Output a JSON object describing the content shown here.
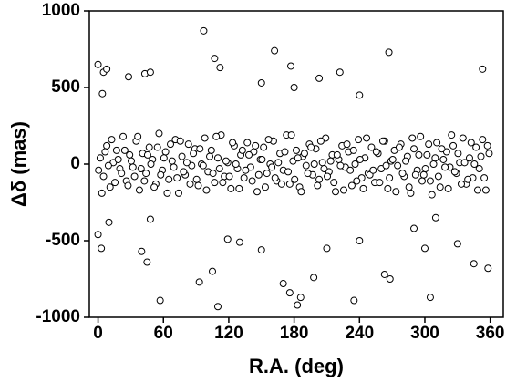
{
  "chart_data": {
    "type": "scatter",
    "xlabel": "R.A. (deg)",
    "ylabel": "Δδ (mas)",
    "xlim": [
      -8,
      372
    ],
    "ylim": [
      -1000,
      1000
    ],
    "xticks": [
      0,
      60,
      120,
      180,
      240,
      300,
      360
    ],
    "yticks": [
      -1000,
      -500,
      0,
      500,
      1000
    ],
    "series": [
      {
        "color": "#000000",
        "x": [
          2,
          5,
          8,
          11,
          14,
          17,
          20,
          23,
          26,
          29,
          32,
          35,
          38,
          41,
          44,
          47,
          50,
          53,
          56,
          59,
          62,
          65,
          68,
          71,
          74,
          77,
          80,
          83,
          86,
          89,
          92,
          95,
          98,
          101,
          104,
          107,
          110,
          113,
          116,
          119,
          122,
          125,
          128,
          131,
          134,
          137,
          140,
          143,
          146,
          149,
          152,
          155,
          158,
          161,
          164,
          167,
          170,
          173,
          176,
          179,
          182,
          185,
          188,
          191,
          194,
          197,
          200,
          203,
          206,
          209,
          212,
          215,
          218,
          221,
          224,
          227,
          230,
          233,
          236,
          239,
          242,
          245,
          248,
          251,
          254,
          257,
          260,
          263,
          266,
          269,
          272,
          275,
          278,
          281,
          284,
          287,
          290,
          293,
          296,
          299,
          302,
          305,
          308,
          311,
          314,
          317,
          320,
          323,
          326,
          329,
          332,
          335,
          338,
          341,
          344,
          347,
          350,
          353,
          356,
          359,
          0.5,
          3.5,
          6.5,
          9.5,
          12.5,
          15.5,
          18.5,
          21.5,
          24.5,
          27.5,
          30.5,
          33.5,
          36.5,
          39.5,
          42.5,
          45.5,
          48.5,
          51.5,
          54.5,
          57.5,
          60.5,
          63.5,
          66.5,
          69.5,
          72.5,
          75.5,
          78.5,
          81.5,
          84.5,
          87.5,
          90.5,
          93.5,
          96.5,
          99.5,
          102.5,
          105.5,
          108.5,
          111.5,
          114.5,
          117.5,
          120.5,
          123.5,
          126.5,
          129.5,
          132.5,
          135.5,
          138.5,
          141.5,
          144.5,
          147.5,
          150.5,
          153.5,
          156.5,
          159.5,
          162.5,
          165.5,
          168.5,
          171.5,
          174.5,
          177.5,
          180.5,
          183.5,
          186.5,
          189.5,
          192.5,
          195.5,
          198.5,
          201.5,
          204.5,
          207.5,
          210.5,
          213.5,
          216.5,
          219.5,
          222.5,
          225.5,
          228.5,
          231.5,
          234.5,
          237.5,
          240.5,
          243.5,
          246.5,
          249.5,
          252.5,
          255.5,
          258.5,
          261.5,
          264.5,
          267.5,
          270.5,
          273.5,
          276.5,
          279.5,
          282.5,
          285.5,
          288.5,
          291.5,
          294.5,
          297.5,
          300.5,
          303.5,
          306.5,
          309.5,
          312.5,
          315.5,
          318.5,
          321.5,
          324.5,
          327.5,
          330.5,
          333.5,
          336.5,
          339.5,
          342.5,
          345.5,
          348.5,
          351.5,
          354.5,
          357.5,
          0,
          5,
          8,
          4,
          97,
          162,
          267,
          353,
          107,
          112,
          177,
          43,
          48,
          28,
          203,
          222,
          240,
          180,
          150,
          0,
          3,
          10,
          40,
          45,
          48,
          57,
          93,
          110,
          105,
          119,
          130,
          176,
          183,
          186,
          198,
          210,
          235,
          240,
          263,
          268,
          300,
          305,
          345,
          358,
          310,
          290,
          150,
          170,
          330
        ],
        "values": [
          40,
          -80,
          120,
          -150,
          10,
          90,
          -30,
          180,
          -110,
          60,
          -20,
          150,
          -170,
          70,
          -60,
          110,
          30,
          -130,
          200,
          -40,
          80,
          -100,
          20,
          160,
          -190,
          50,
          -70,
          130,
          -10,
          100,
          -140,
          0,
          170,
          -50,
          90,
          -120,
          40,
          190,
          -80,
          10,
          -160,
          120,
          -30,
          60,
          -90,
          140,
          -20,
          80,
          -180,
          30,
          110,
          -60,
          0,
          150,
          -110,
          70,
          -40,
          190,
          -130,
          20,
          90,
          -150,
          50,
          -10,
          130,
          -70,
          100,
          -100,
          10,
          170,
          -50,
          60,
          -180,
          30,
          120,
          -20,
          80,
          -140,
          0,
          160,
          -90,
          40,
          -60,
          110,
          -120,
          70,
          -30,
          150,
          -160,
          20,
          90,
          -10,
          130,
          -80,
          50,
          -190,
          100,
          -40,
          180,
          -70,
          60,
          -110,
          0,
          140,
          -150,
          30,
          80,
          -20,
          120,
          -60,
          10,
          170,
          -130,
          40,
          -90,
          110,
          -30,
          160,
          -170,
          70,
          -40,
          -190,
          80,
          -10,
          160,
          -120,
          30,
          -60,
          90,
          -140,
          20,
          -80,
          180,
          -30,
          -110,
          60,
          0,
          -150,
          110,
          -70,
          40,
          -190,
          130,
          -20,
          -90,
          150,
          -50,
          10,
          -130,
          70,
          -100,
          100,
          -10,
          -170,
          50,
          -60,
          180,
          -30,
          -120,
          20,
          -80,
          140,
          0,
          -160,
          90,
          -40,
          60,
          -110,
          120,
          -70,
          30,
          -150,
          160,
          -20,
          -90,
          10,
          -130,
          80,
          -50,
          190,
          -100,
          40,
          -180,
          70,
          -60,
          110,
          0,
          -140,
          150,
          -30,
          -80,
          20,
          -120,
          60,
          -10,
          -170,
          130,
          -40,
          90,
          -110,
          30,
          -160,
          170,
          -70,
          -40,
          80,
          -120,
          150,
          -10,
          -90,
          30,
          -180,
          110,
          -60,
          20,
          -150,
          170,
          -70,
          60,
          -110,
          -30,
          130,
          -200,
          40,
          -80,
          100,
          -20,
          -160,
          190,
          -50,
          70,
          -130,
          10,
          -100,
          140,
          0,
          -170,
          50,
          -90,
          120,
          650,
          600,
          620,
          460,
          870,
          740,
          730,
          620,
          690,
          630,
          640,
          590,
          600,
          570,
          560,
          600,
          450,
          500,
          530,
          -460,
          -550,
          -380,
          -570,
          -640,
          -360,
          -890,
          -770,
          -930,
          -700,
          -490,
          -510,
          -840,
          -920,
          -870,
          -740,
          -550,
          -890,
          -500,
          -720,
          -750,
          -550,
          -870,
          -650,
          -680,
          -350,
          -420,
          -560,
          -780,
          -520
        ]
      }
    ]
  }
}
